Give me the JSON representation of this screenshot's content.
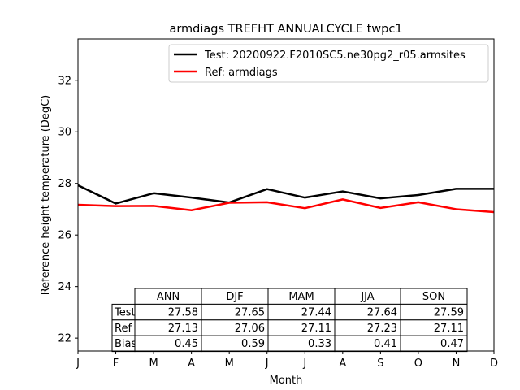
{
  "chart_data": {
    "type": "line",
    "title": "armdiags TREFHT ANNUALCYCLE twpc1",
    "xlabel": "Month",
    "ylabel": "Reference height temperature (DegC)",
    "x_ticks": [
      "J",
      "F",
      "M",
      "A",
      "M",
      "J",
      "J",
      "A",
      "S",
      "O",
      "N",
      "D"
    ],
    "ylim": [
      21.5,
      33.6
    ],
    "y_ticks": [
      22,
      24,
      26,
      28,
      30,
      32
    ],
    "y_tick_labels": [
      "22",
      "24",
      "26",
      "28",
      "30",
      "32"
    ],
    "grid": false,
    "legend_position": "top-right",
    "series": [
      {
        "name": "Test: 20200922.F2010SC5.ne30pg2_r05.armsites",
        "color": "#000000",
        "values": [
          27.93,
          27.22,
          27.62,
          27.45,
          27.26,
          27.78,
          27.45,
          27.69,
          27.42,
          27.55,
          27.79,
          27.79
        ]
      },
      {
        "name": "Ref: armdiags",
        "color": "#ff0000",
        "values": [
          27.17,
          27.12,
          27.13,
          26.96,
          27.25,
          27.27,
          27.04,
          27.38,
          27.05,
          27.27,
          27.0,
          26.89
        ]
      }
    ],
    "table": {
      "columns": [
        "ANN",
        "DJF",
        "MAM",
        "JJA",
        "SON"
      ],
      "rows": [
        {
          "label": "Test",
          "values": [
            "27.58",
            "27.65",
            "27.44",
            "27.64",
            "27.59"
          ]
        },
        {
          "label": "Ref",
          "values": [
            "27.13",
            "27.06",
            "27.11",
            "27.23",
            "27.11"
          ]
        },
        {
          "label": "Bias",
          "values": [
            "0.45",
            "0.59",
            "0.33",
            "0.41",
            "0.47"
          ]
        }
      ]
    }
  }
}
